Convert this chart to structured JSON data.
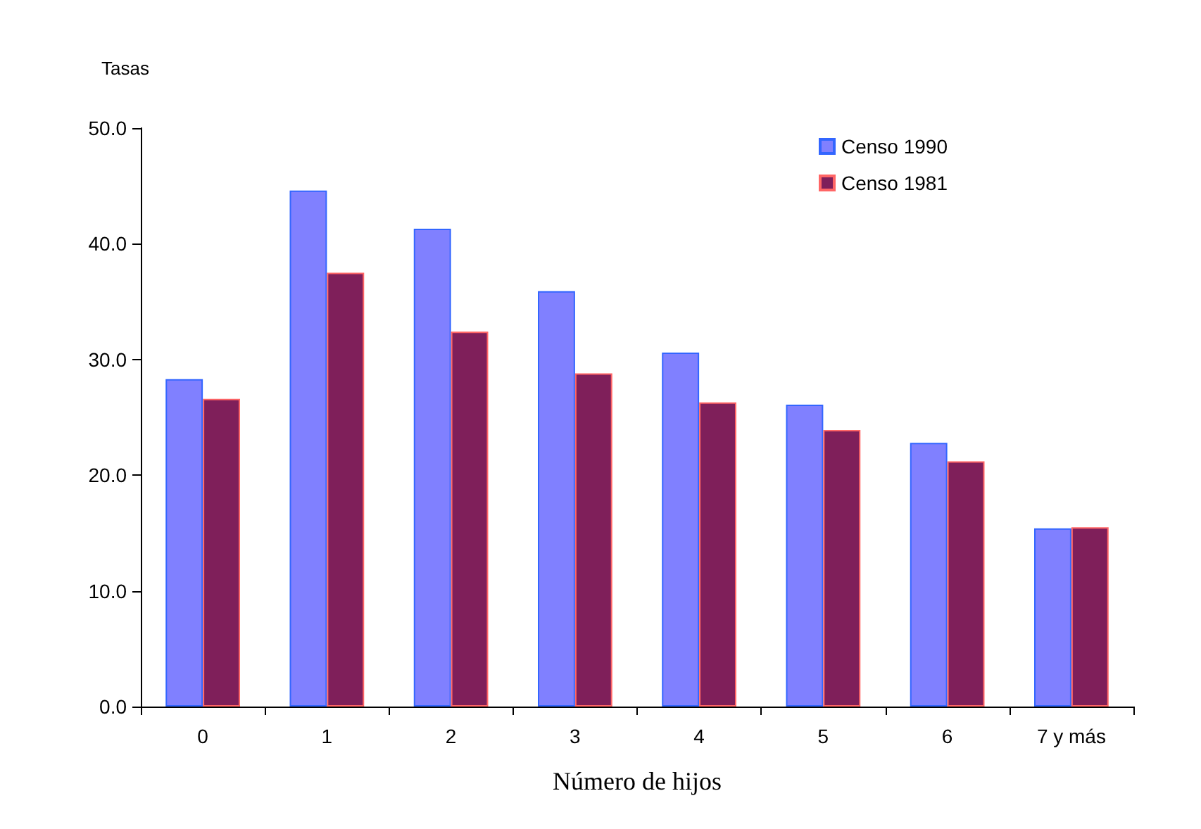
{
  "chart_data": {
    "type": "bar",
    "ylabel": "Tasas",
    "xlabel": "Número de hijos",
    "categories": [
      "0",
      "1",
      "2",
      "3",
      "4",
      "5",
      "6",
      "7 y más"
    ],
    "series": [
      {
        "name": "Censo 1990",
        "color": "#8080ff",
        "values": [
          28.3,
          44.6,
          41.3,
          35.9,
          30.6,
          26.1,
          22.8,
          15.4
        ]
      },
      {
        "name": "Censo 1981",
        "color": "#7f1f5a",
        "values": [
          26.6,
          37.5,
          32.4,
          28.8,
          26.3,
          23.9,
          21.2,
          15.5
        ]
      }
    ],
    "ylim": [
      0,
      50
    ],
    "yticks": [
      {
        "value": 0,
        "label": "0.0"
      },
      {
        "value": 10,
        "label": "10.0"
      },
      {
        "value": 20,
        "label": "20.0"
      },
      {
        "value": 30,
        "label": "30.0"
      },
      {
        "value": 40,
        "label": "40.0"
      },
      {
        "value": 50,
        "label": "50.0"
      }
    ],
    "grid": false,
    "legend": "top right"
  }
}
